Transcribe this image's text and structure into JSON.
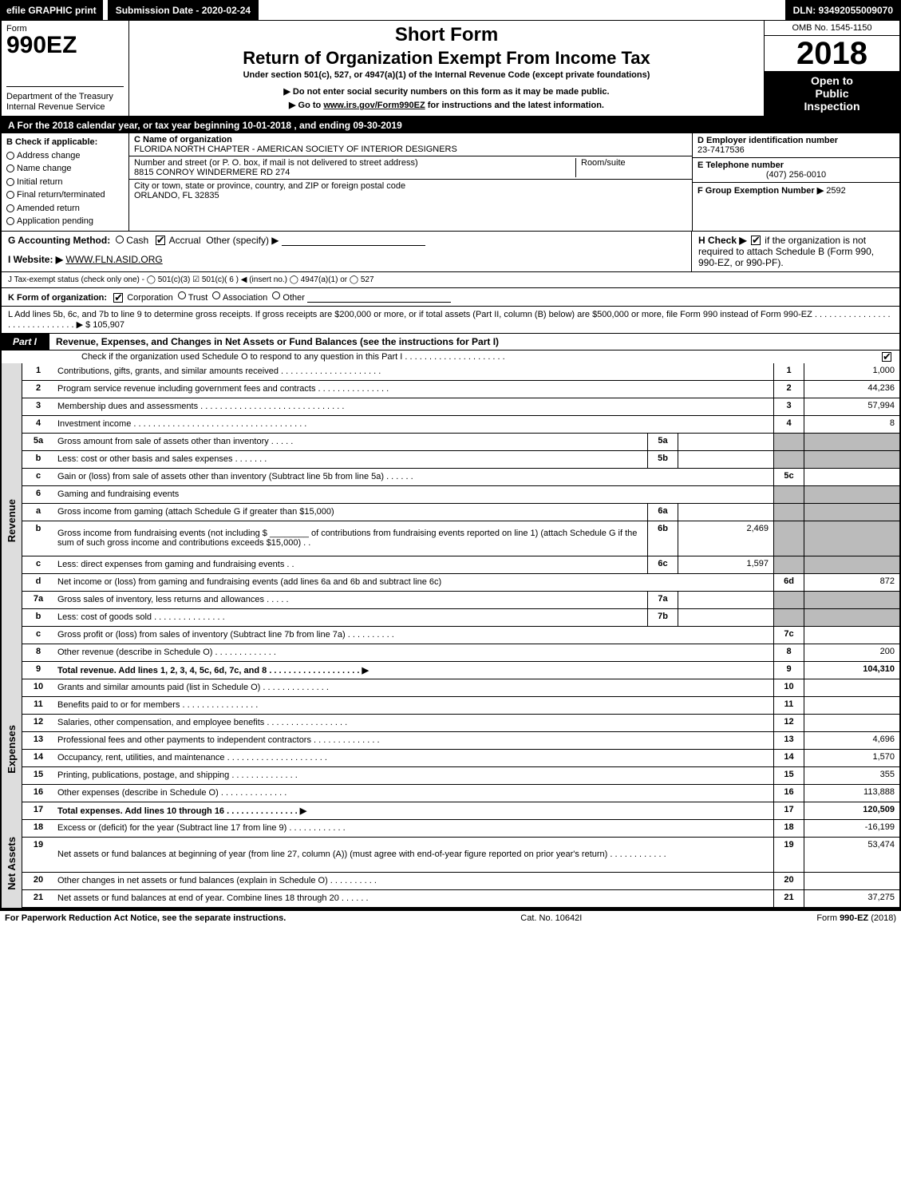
{
  "topBar": {
    "efile": "efile GRAPHIC print",
    "submission": "Submission Date - 2020-02-24",
    "dln": "DLN: 93492055009070"
  },
  "header": {
    "formWord": "Form",
    "formCode": "990EZ",
    "dept": "Department of the Treasury\nInternal Revenue Service",
    "shortForm": "Short Form",
    "title": "Return of Organization Exempt From Income Tax",
    "subtitle": "Under section 501(c), 527, or 4947(a)(1) of the Internal Revenue Code (except private foundations)",
    "note1": "▶ Do not enter social security numbers on this form as it may be made public.",
    "note2_prefix": "▶ Go to ",
    "note2_link": "www.irs.gov/Form990EZ",
    "note2_suffix": " for instructions and the latest information.",
    "omb": "OMB No. 1545-1150",
    "year": "2018",
    "inspect": "Open to\nPublic\nInspection"
  },
  "periodBar": "A  For the 2018 calendar year, or tax year beginning 10-01-2018            , and ending 09-30-2019",
  "boxB": {
    "label": "B  Check if applicable:",
    "items": [
      "Address change",
      "Name change",
      "Initial return",
      "Final return/terminated",
      "Amended return",
      "Application pending"
    ]
  },
  "boxC": {
    "nameLabel": "C Name of organization",
    "name": "FLORIDA NORTH CHAPTER - AMERICAN SOCIETY OF INTERIOR DESIGNERS",
    "streetLabel": "Number and street (or P. O. box, if mail is not delivered to street address)",
    "street": "8815 CONROY WINDERMERE RD 274",
    "roomLabel": "Room/suite",
    "cityLabel": "City or town, state or province, country, and ZIP or foreign postal code",
    "city": "ORLANDO, FL  32835"
  },
  "boxD": {
    "einLabel": "D Employer identification number",
    "ein": "23-7417536",
    "phoneLabel": "E Telephone number",
    "phone": "(407) 256-0010",
    "groupLabel": "F Group Exemption Number  ▶ ",
    "group": "2592"
  },
  "rowG": {
    "label": "G Accounting Method:",
    "cash": "Cash",
    "accrual": "Accrual",
    "other": "Other (specify) ▶"
  },
  "rowH": {
    "label": "H  Check ▶",
    "text": " if the organization is not required to attach Schedule B (Form 990, 990-EZ, or 990-PF)."
  },
  "rowI": {
    "label": "I Website: ▶",
    "val": "WWW.FLN.ASID.ORG"
  },
  "rowJ": "J Tax-exempt status (check only one) -  ◯ 501(c)(3)  ☑ 501(c)( 6 ) ◀ (insert no.)  ◯ 4947(a)(1) or  ◯ 527",
  "rowK": {
    "label": "K Form of organization:",
    "corp": "Corporation",
    "trust": "Trust",
    "assoc": "Association",
    "other": "Other"
  },
  "rowL": {
    "text": "L Add lines 5b, 6c, and 7b to line 9 to determine gross receipts. If gross receipts are $200,000 or more, or if total assets (Part II, column (B) below) are $500,000 or more, file Form 990 instead of Form 990-EZ . . . . . . . . . . . . . . . . . . . . . . . . . . . . . . ▶ $",
    "val": "105,907"
  },
  "partI": {
    "label": "Part I",
    "title": "Revenue, Expenses, and Changes in Net Assets or Fund Balances (see the instructions for Part I)",
    "checkNote": "Check if the organization used Schedule O to respond to any question in this Part I . . . . . . . . . . . . . . . . . . . . ."
  },
  "sections": {
    "revenue": "Revenue",
    "expenses": "Expenses",
    "netassets": "Net Assets"
  },
  "lines": [
    {
      "n": "1",
      "desc": "Contributions, gifts, grants, and similar amounts received . . . . . . . . . . . . . . . . . . . . .",
      "col": "1",
      "val": "1,000"
    },
    {
      "n": "2",
      "desc": "Program service revenue including government fees and contracts . . . . . . . . . . . . . . .",
      "col": "2",
      "val": "44,236"
    },
    {
      "n": "3",
      "desc": "Membership dues and assessments . . . . . . . . . . . . . . . . . . . . . . . . . . . . . .",
      "col": "3",
      "val": "57,994"
    },
    {
      "n": "4",
      "desc": "Investment income . . . . . . . . . . . . . . . . . . . . . . . . . . . . . . . . . . . .",
      "col": "4",
      "val": "8"
    },
    {
      "n": "5a",
      "desc": "Gross amount from sale of assets other than inventory . . . . .",
      "sub": "5a",
      "subval": "",
      "shade": true
    },
    {
      "n": "b",
      "desc": "Less: cost or other basis and sales expenses . . . . . . .",
      "sub": "5b",
      "subval": "",
      "shade": true
    },
    {
      "n": "c",
      "desc": "Gain or (loss) from sale of assets other than inventory (Subtract line 5b from line 5a) . . . . . .",
      "col": "5c",
      "val": ""
    },
    {
      "n": "6",
      "desc": "Gaming and fundraising events",
      "col": "",
      "val": "",
      "shadeRight": true
    },
    {
      "n": "a",
      "desc": "Gross income from gaming (attach Schedule G if greater than $15,000)",
      "sub": "6a",
      "subval": "",
      "shade": true
    },
    {
      "n": "b",
      "desc": "Gross income from fundraising events (not including $ ________ of contributions from fundraising events reported on line 1) (attach Schedule G if the sum of such gross income and contributions exceeds $15,000)    . .",
      "sub": "6b",
      "subval": "2,469",
      "shade": true,
      "tall": true
    },
    {
      "n": "c",
      "desc": "Less: direct expenses from gaming and fundraising events    . .",
      "sub": "6c",
      "subval": "1,597",
      "shade": true
    },
    {
      "n": "d",
      "desc": "Net income or (loss) from gaming and fundraising events (add lines 6a and 6b and subtract line 6c)",
      "col": "6d",
      "val": "872"
    },
    {
      "n": "7a",
      "desc": "Gross sales of inventory, less returns and allowances . . . . .",
      "sub": "7a",
      "subval": "",
      "shade": true
    },
    {
      "n": "b",
      "desc": "Less: cost of goods sold         . . . . . . . . . . . . . . .",
      "sub": "7b",
      "subval": "",
      "shade": true
    },
    {
      "n": "c",
      "desc": "Gross profit or (loss) from sales of inventory (Subtract line 7b from line 7a) . . . . . . . . . .",
      "col": "7c",
      "val": ""
    },
    {
      "n": "8",
      "desc": "Other revenue (describe in Schedule O)                         . . . . . . . . . . . . .",
      "col": "8",
      "val": "200"
    },
    {
      "n": "9",
      "desc": "Total revenue. Add lines 1, 2, 3, 4, 5c, 6d, 7c, and 8 . . . . . . . . . . . . . . . . . . . ▶",
      "col": "9",
      "val": "104,310",
      "bold": true
    }
  ],
  "expLines": [
    {
      "n": "10",
      "desc": "Grants and similar amounts paid (list in Schedule O)        . . . . . . . . . . . . . .",
      "col": "10",
      "val": ""
    },
    {
      "n": "11",
      "desc": "Benefits paid to or for members                    . . . . . . . . . . . . . . . .",
      "col": "11",
      "val": ""
    },
    {
      "n": "12",
      "desc": "Salaries, other compensation, and employee benefits . . . . . . . . . . . . . . . . .",
      "col": "12",
      "val": ""
    },
    {
      "n": "13",
      "desc": "Professional fees and other payments to independent contractors . . . . . . . . . . . . . .",
      "col": "13",
      "val": "4,696"
    },
    {
      "n": "14",
      "desc": "Occupancy, rent, utilities, and maintenance . . . . . . . . . . . . . . . . . . . . .",
      "col": "14",
      "val": "1,570"
    },
    {
      "n": "15",
      "desc": "Printing, publications, postage, and shipping            . . . . . . . . . . . . . .",
      "col": "15",
      "val": "355"
    },
    {
      "n": "16",
      "desc": "Other expenses (describe in Schedule O)                . . . . . . . . . . . . . .",
      "col": "16",
      "val": "113,888"
    },
    {
      "n": "17",
      "desc": "Total expenses. Add lines 10 through 16        . . . . . . . . . . . . . . . ▶",
      "col": "17",
      "val": "120,509",
      "bold": true
    }
  ],
  "naLines": [
    {
      "n": "18",
      "desc": "Excess or (deficit) for the year (Subtract line 17 from line 9)      . . . . . . . . . . . .",
      "col": "18",
      "val": "-16,199"
    },
    {
      "n": "19",
      "desc": "Net assets or fund balances at beginning of year (from line 27, column (A)) (must agree with end-of-year figure reported on prior year's return)          . . . . . . . . . . . .",
      "col": "19",
      "val": "53,474",
      "tall": true
    },
    {
      "n": "20",
      "desc": "Other changes in net assets or fund balances (explain in Schedule O)    . . . . . . . . . .",
      "col": "20",
      "val": ""
    },
    {
      "n": "21",
      "desc": "Net assets or fund balances at end of year. Combine lines 18 through 20        . . . . . .",
      "col": "21",
      "val": "37,275"
    }
  ],
  "footer": {
    "left": "For Paperwork Reduction Act Notice, see the separate instructions.",
    "mid": "Cat. No. 10642I",
    "right": "Form 990-EZ (2018)"
  }
}
